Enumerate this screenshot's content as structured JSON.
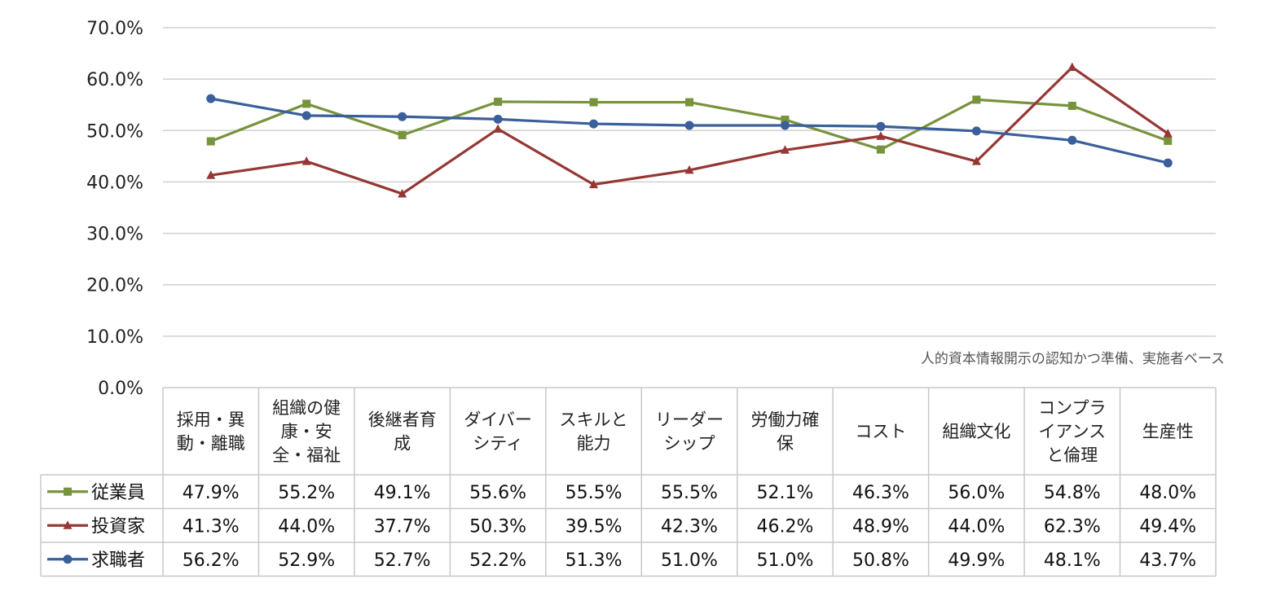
{
  "chart_data": {
    "type": "line",
    "note": "人的資本情報開示の認知かつ準備、実施者ベース",
    "y_tick_labels": [
      "70.0%",
      "60.0%",
      "50.0%",
      "40.0%",
      "30.0%",
      "20.0%",
      "10.0%",
      "0.0%"
    ],
    "ylim": [
      0,
      70
    ],
    "ylabel": "",
    "xlabel": "",
    "grid": true,
    "legend": "data-table",
    "categories": [
      [
        "採用・異",
        "動・離職"
      ],
      [
        "組織の健",
        "康・安",
        "全・福祉"
      ],
      [
        "後継者育",
        "成"
      ],
      [
        "ダイバー",
        "シティ"
      ],
      [
        "スキルと",
        "能力"
      ],
      [
        "リーダー",
        "シップ"
      ],
      [
        "労働力確",
        "保"
      ],
      [
        "コスト"
      ],
      [
        "組織文化"
      ],
      [
        "コンプラ",
        "イアンス",
        "と倫理"
      ],
      [
        "生産性"
      ]
    ],
    "series": [
      {
        "name": "従業員",
        "color": "#77933C",
        "marker": "square",
        "values": [
          47.9,
          55.2,
          49.1,
          55.6,
          55.5,
          55.5,
          52.1,
          46.3,
          56.0,
          54.8,
          48.0
        ],
        "labels": [
          "47.9%",
          "55.2%",
          "49.1%",
          "55.6%",
          "55.5%",
          "55.5%",
          "52.1%",
          "46.3%",
          "56.0%",
          "54.8%",
          "48.0%"
        ]
      },
      {
        "name": "投資家",
        "color": "#953735",
        "marker": "triangle",
        "values": [
          41.3,
          44.0,
          37.7,
          50.3,
          39.5,
          42.3,
          46.2,
          48.9,
          44.0,
          62.3,
          49.4
        ],
        "labels": [
          "41.3%",
          "44.0%",
          "37.7%",
          "50.3%",
          "39.5%",
          "42.3%",
          "46.2%",
          "48.9%",
          "44.0%",
          "62.3%",
          "49.4%"
        ]
      },
      {
        "name": "求職者",
        "color": "#3A5F9B",
        "marker": "circle",
        "values": [
          56.2,
          52.9,
          52.7,
          52.2,
          51.3,
          51.0,
          51.0,
          50.8,
          49.9,
          48.1,
          43.7
        ],
        "labels": [
          "56.2%",
          "52.9%",
          "52.7%",
          "52.2%",
          "51.3%",
          "51.0%",
          "51.0%",
          "50.8%",
          "49.9%",
          "48.1%",
          "43.7%"
        ]
      }
    ]
  }
}
